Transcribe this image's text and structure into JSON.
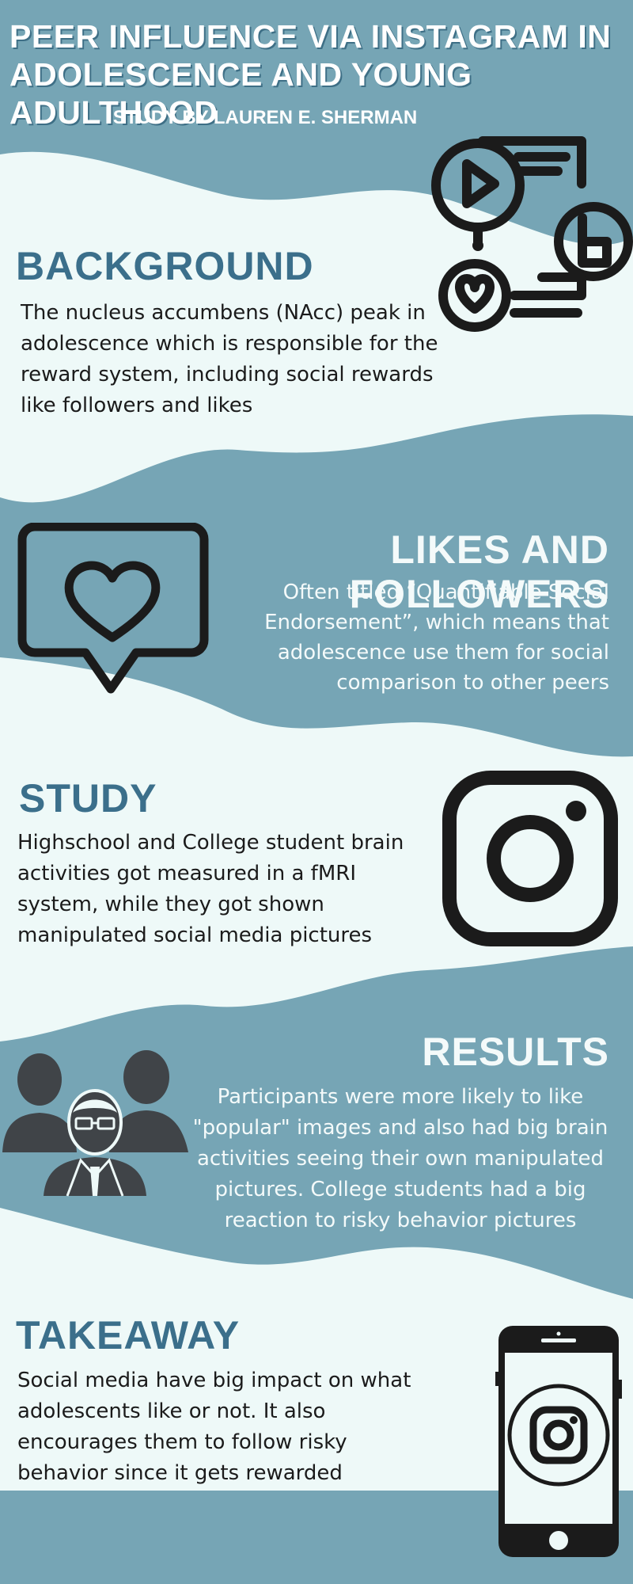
{
  "header": {
    "title": "PEER INFLUENCE VIA INSTAGRAM IN ADOLESCENCE AND YOUNG ADULTHOOD",
    "subtitle": "STUDY BY LAUREN E. SHERMAN"
  },
  "sections": {
    "background": {
      "heading": "BACKGROUND",
      "body": "The nucleus accumbens (NAcc) peak in adolescence which is responsible for the reward system, including social rewards like followers and likes"
    },
    "likes": {
      "heading": "LIKES AND FOLLOWERS",
      "body": "Often titled “Quantifiable Social Endorsement”, which means that adolescence use them for social comparison to other peers"
    },
    "study": {
      "heading": "STUDY",
      "body": "Highschool and College student brain activities got measured in a fMRI system, while they got shown manipulated social media pictures"
    },
    "results": {
      "heading": "RESULTS",
      "body": "Participants were more likely to like \"popular\" images and also had big brain activities seeing their own manipulated pictures. College students had a big reaction to risky behavior  pictures"
    },
    "takeaway": {
      "heading": "TAKEAWAY",
      "body": "Social media have big impact on what adolescents like or not. It also encourages them to follow risky behavior since it gets rewarded"
    }
  },
  "icons": [
    "social-media-network-icon",
    "heart-speech-bubble-icon",
    "instagram-logo-icon",
    "people-group-icon",
    "smartphone-instagram-icon"
  ],
  "colors": {
    "band": "#76a5b5",
    "light_band": "#eef9f8",
    "heading_dark": "#3b6f8b",
    "text_light": "#f4fafa",
    "icon_dark": "#1b1b1b",
    "people_gray": "#404448"
  }
}
